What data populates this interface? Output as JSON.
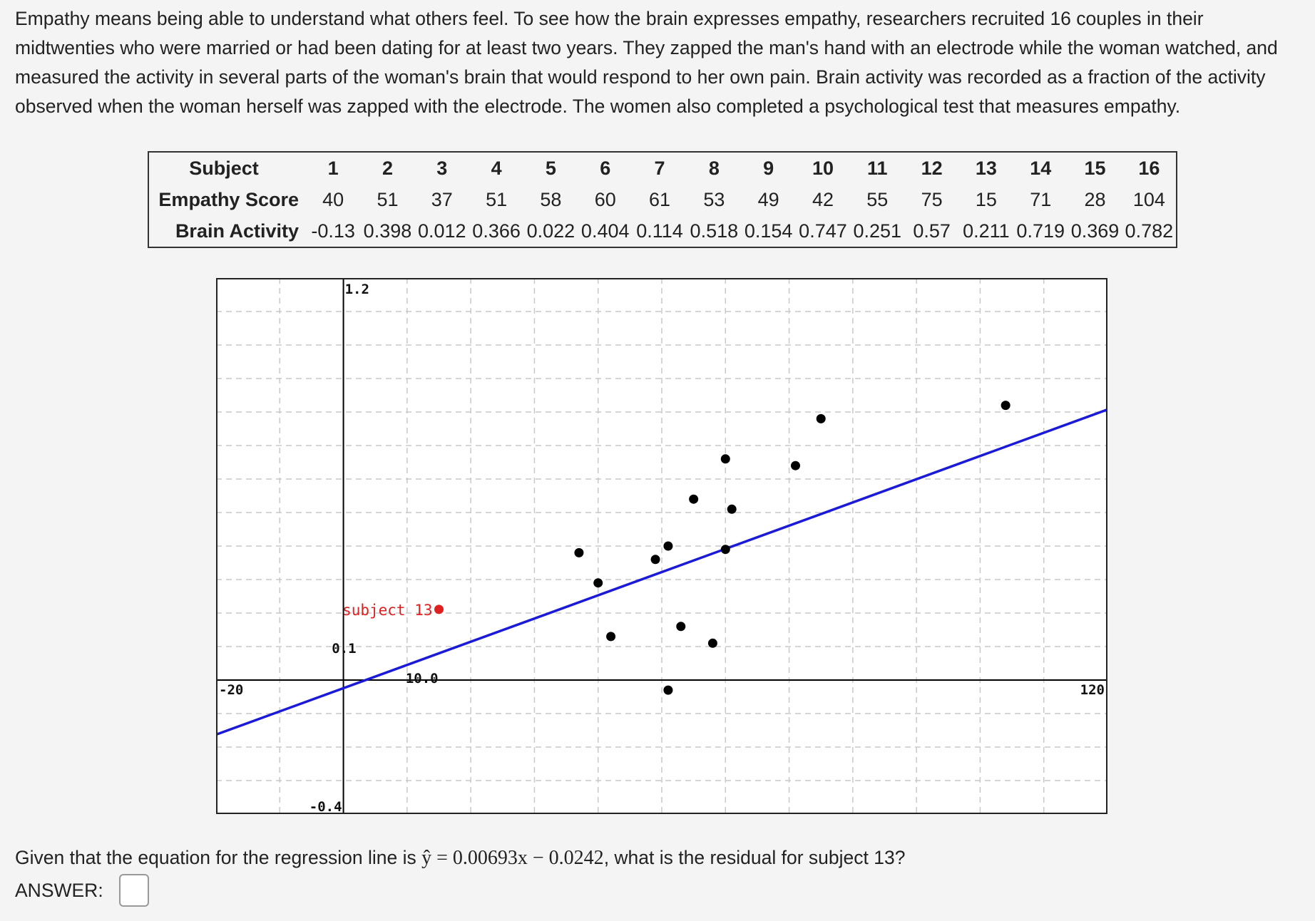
{
  "intro_text": "Empathy means being able to understand what others feel. To see how the brain expresses empathy, researchers recruited 16 couples in their midtwenties who were married or had been dating for at least two years. They zapped the man's hand with an electrode while the woman watched, and measured the activity in several parts of the woman's brain that would respond to her own pain. Brain activity was recorded as a fraction of the activity observed when the woman herself was zapped with the electrode. The women also completed a psychological test that measures empathy.",
  "table": {
    "row_labels": [
      "Subject",
      "Empathy Score",
      "Brain Activity"
    ],
    "subjects": [
      "1",
      "2",
      "3",
      "4",
      "5",
      "6",
      "7",
      "8",
      "9",
      "10",
      "11",
      "12",
      "13",
      "14",
      "15",
      "16"
    ],
    "empathy": [
      "40",
      "51",
      "37",
      "51",
      "58",
      "60",
      "61",
      "53",
      "49",
      "42",
      "55",
      "75",
      "15",
      "71",
      "28",
      "104"
    ],
    "brain": [
      "-0.13",
      "0.398",
      "0.012",
      "0.366",
      "0.022",
      "0.404",
      "0.114",
      "0.518",
      "0.154",
      "0.747",
      "0.251",
      "0.57",
      "0.211",
      "0.719",
      "0.369",
      "0.782"
    ]
  },
  "chart_data": {
    "type": "scatter",
    "xlim": [
      -20,
      120
    ],
    "ylim": [
      -0.4,
      1.2
    ],
    "x_tick_labels": [
      "-20",
      "10.0",
      "120"
    ],
    "y_tick_labels": [
      "1.2",
      "0.1",
      "-0.4"
    ],
    "grid": true,
    "points": [
      {
        "x": 40,
        "y": 0.29
      },
      {
        "x": 51,
        "y": -0.03
      },
      {
        "x": 37,
        "y": 0.38
      },
      {
        "x": 51,
        "y": 0.4
      },
      {
        "x": 58,
        "y": 0.11
      },
      {
        "x": 60,
        "y": 0.66
      },
      {
        "x": 61,
        "y": 0.51
      },
      {
        "x": 53,
        "y": 0.16
      },
      {
        "x": 49,
        "y": 0.36
      },
      {
        "x": 42,
        "y": 0.13
      },
      {
        "x": 55,
        "y": 0.54
      },
      {
        "x": 75,
        "y": 0.78
      },
      {
        "x": 71,
        "y": 0.64
      },
      {
        "x": 104,
        "y": 0.82
      },
      {
        "x": 60,
        "y": 0.39
      }
    ],
    "highlight_point": {
      "x": 15,
      "y": 0.211,
      "label": "subject 13",
      "color": "#e02020"
    },
    "regression_line": {
      "slope": 0.00693,
      "intercept": -0.0242,
      "color": "#1a1ad8"
    }
  },
  "question_prefix": "Given that the equation for the regression line is ",
  "question_equation": "ŷ = 0.00693x − 0.0242",
  "question_suffix": ", what is the residual for subject 13?",
  "answer_label": "ANSWER:"
}
